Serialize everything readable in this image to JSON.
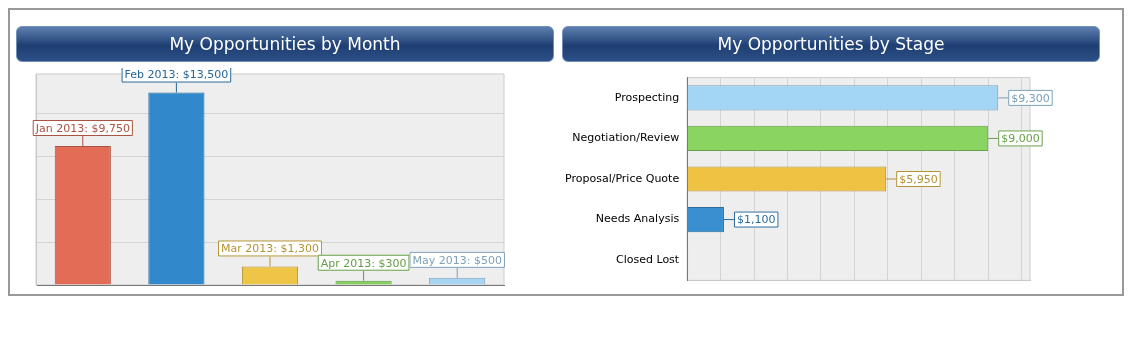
{
  "chart_data": [
    {
      "type": "bar",
      "title": "My Opportunities by Month",
      "categories": [
        null,
        null,
        null,
        null,
        null
      ],
      "values": [
        9750,
        13500,
        1300,
        300,
        500
      ],
      "colors": [
        "#e36c57",
        "#3189cb",
        "#efc548",
        "#86cf5c",
        "#a6d6f4"
      ],
      "value_labels": [
        "Jan 2013: $9,750",
        "Feb 2013: $13,500",
        "Mar 2013: $1,300",
        "Apr 2013: $300",
        "May 2013: $500"
      ],
      "ylim": [
        0,
        14800
      ],
      "yticks": [
        {
          "value": 0,
          "label": null
        },
        {
          "value": 3000,
          "label": null
        },
        {
          "value": 6000,
          "label": null
        },
        {
          "value": 9000,
          "label": null
        },
        {
          "value": 12000,
          "label": null
        }
      ],
      "grid": "y",
      "tick_labels": false
    },
    {
      "type": "bar",
      "orientation": "horizontal",
      "title": "My Opportunities by Stage",
      "categories": [
        "Prospecting",
        "Negotiation/Review",
        "Proposal/Price Quote",
        "Needs Analysis",
        "Closed Lost"
      ],
      "values": [
        9300,
        9000,
        5950,
        1100,
        0
      ],
      "colors": [
        "#a3d5f5",
        "#8ad462",
        "#efc244",
        "#3a8fd0",
        "#aaaaaa"
      ],
      "value_labels": [
        "$9,300",
        "$9,000",
        "$5,950",
        "$1,100",
        null
      ],
      "xlim": [
        0,
        10250
      ],
      "xticks": [
        {
          "value": 0,
          "label": null
        },
        {
          "value": 1000,
          "label": null
        },
        {
          "value": 2000,
          "label": null
        },
        {
          "value": 3000,
          "label": null
        },
        {
          "value": 4000,
          "label": null
        },
        {
          "value": 5000,
          "label": null
        },
        {
          "value": 6000,
          "label": null
        },
        {
          "value": 7000,
          "label": null
        },
        {
          "value": 8000,
          "label": null
        },
        {
          "value": 9000,
          "label": null
        },
        {
          "value": 10000,
          "label": null
        }
      ],
      "grid": "x",
      "tick_labels": "y"
    }
  ]
}
